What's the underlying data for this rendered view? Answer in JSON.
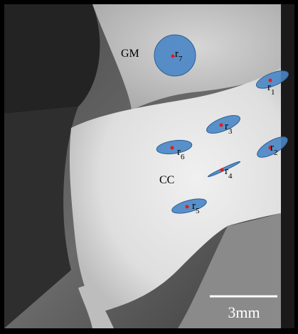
{
  "image": {
    "labels": {
      "gray_matter": "GM",
      "corpus_callosum": "CC"
    },
    "scale_bar": {
      "label": "3mm"
    },
    "rois": [
      {
        "name": "r",
        "index": "1"
      },
      {
        "name": "r",
        "index": "2"
      },
      {
        "name": "r",
        "index": "3"
      },
      {
        "name": "r",
        "index": "4"
      },
      {
        "name": "r",
        "index": "5"
      },
      {
        "name": "r",
        "index": "6"
      },
      {
        "name": "r",
        "index": "7"
      }
    ],
    "colors": {
      "roi_fill": "#4a86c5",
      "roi_stroke": "#2b5f95",
      "roi_center": "#e21b1b",
      "scale_bar": "#ffffff"
    }
  }
}
